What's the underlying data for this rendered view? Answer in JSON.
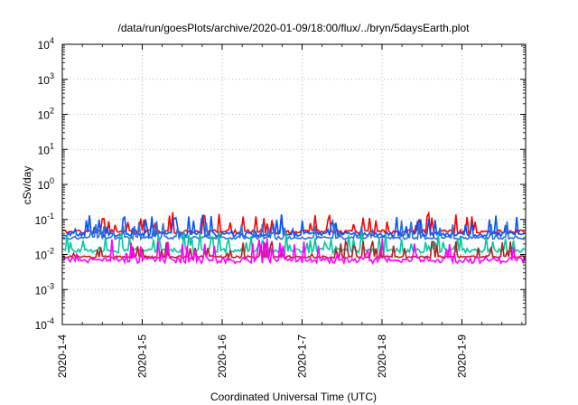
{
  "chart_data": {
    "type": "line",
    "title": "/data/run/goesPlots/archive/2020-01-09/18:00/flux/../bryn/5daysEarth.plot",
    "xlabel": "Coordinated Universal Time (UTC)",
    "ylabel": "cSv/day",
    "yscale": "log",
    "ylim": [
      0.0001,
      10000
    ],
    "xlim": [
      "2020-01-04",
      "2020-01-09 18:00"
    ],
    "grid": true,
    "x_ticks": [
      "2020-1-4",
      "2020-1-5",
      "2020-1-6",
      "2020-1-7",
      "2020-1-8",
      "2020-1-9"
    ],
    "y_ticks": [
      {
        "value": 0.0001,
        "base": "10",
        "exp": "-4"
      },
      {
        "value": 0.001,
        "base": "10",
        "exp": "-3"
      },
      {
        "value": 0.01,
        "base": "10",
        "exp": "-2"
      },
      {
        "value": 0.1,
        "base": "10",
        "exp": "-1"
      },
      {
        "value": 1,
        "base": "10",
        "exp": "0"
      },
      {
        "value": 10,
        "base": "10",
        "exp": "1"
      },
      {
        "value": 100,
        "base": "10",
        "exp": "2"
      },
      {
        "value": 1000,
        "base": "10",
        "exp": "3"
      },
      {
        "value": 10000,
        "base": "10",
        "exp": "4"
      }
    ],
    "series": [
      {
        "color": "#ff0000",
        "base": 0.045,
        "amp": 0.25
      },
      {
        "color": "#0055ff",
        "base": 0.038,
        "amp": 0.3
      },
      {
        "color": "#2f6fd8",
        "base": 0.03,
        "amp": 0.2
      },
      {
        "color": "#00c8a0",
        "base": 0.013,
        "amp": 0.3
      },
      {
        "color": "#b22222",
        "base": 0.0085,
        "amp": 0.15
      },
      {
        "color": "#ff00ff",
        "base": 0.007,
        "amp": 0.4
      }
    ]
  }
}
